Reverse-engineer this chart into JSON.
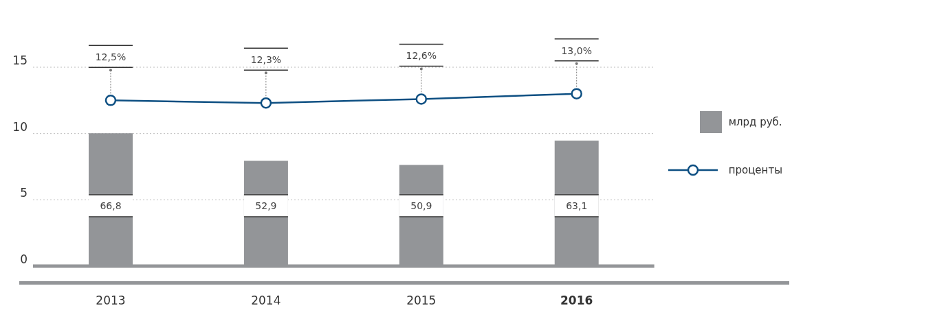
{
  "chart_data": {
    "type": "bar",
    "categories": [
      "2013",
      "2014",
      "2015",
      "2016"
    ],
    "series": [
      {
        "name": "млрд руб.",
        "color": "#939598",
        "values": [
          66.8,
          52.9,
          50.9,
          63.1
        ],
        "axis": "y2",
        "value_labels": [
          "66,8",
          "52,9",
          "50,9",
          "63,1"
        ]
      },
      {
        "name": "проценты",
        "type": "line",
        "color": "#0d4f82",
        "values": [
          12.5,
          12.3,
          12.6,
          13.0
        ],
        "marker": "circle",
        "value_labels": [
          "12,5%",
          "12,3%",
          "12,6%",
          "13,0%"
        ]
      }
    ],
    "ylim": [
      0,
      15
    ],
    "yticks": [
      0,
      5,
      10,
      15
    ],
    "y2lim": [
      0,
      100
    ],
    "grid": "y",
    "legend": "right"
  }
}
